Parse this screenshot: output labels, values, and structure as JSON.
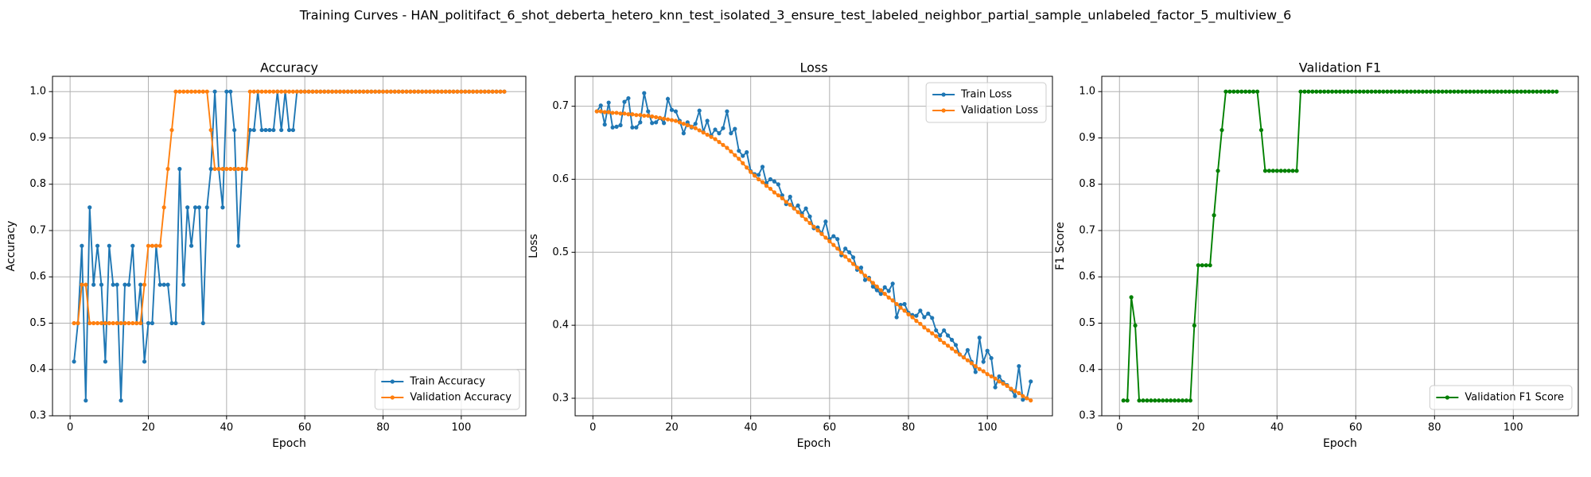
{
  "figure_title": "Training Curves - HAN_politifact_6_shot_deberta_hetero_knn_test_isolated_3_ensure_test_labeled_neighbor_partial_sample_unlabeled_factor_5_multiview_6",
  "chart_data": [
    {
      "type": "line",
      "title": "Accuracy",
      "xlabel": "Epoch",
      "ylabel": "Accuracy",
      "x": [
        1,
        2,
        3,
        4,
        5,
        6,
        7,
        8,
        9,
        10,
        11,
        12,
        13,
        14,
        15,
        16,
        17,
        18,
        19,
        20,
        21,
        22,
        23,
        24,
        25,
        26,
        27,
        28,
        29,
        30,
        31,
        32,
        33,
        34,
        35,
        36,
        37,
        38,
        39,
        40,
        41,
        42,
        43,
        44,
        45,
        46,
        47,
        48,
        49,
        50,
        51,
        52,
        53,
        54,
        55,
        56,
        57,
        58,
        59,
        60,
        61,
        62,
        63,
        64,
        65,
        66,
        67,
        68,
        69,
        70,
        71,
        72,
        73,
        74,
        75,
        76,
        77,
        78,
        79,
        80,
        81,
        82,
        83,
        84,
        85,
        86,
        87,
        88,
        89,
        90,
        91,
        92,
        93,
        94,
        95,
        96,
        97,
        98,
        99,
        100,
        101,
        102,
        103,
        104,
        105,
        106,
        107,
        108,
        109,
        110,
        111
      ],
      "xlim": [
        -4.5,
        116.5
      ],
      "xticks": [
        0,
        20,
        40,
        60,
        80,
        100
      ],
      "ylim": [
        0.3,
        1.033
      ],
      "yticks": [
        0.3,
        0.4,
        0.5,
        0.6,
        0.7,
        0.8,
        0.9,
        {
          "value": 1,
          "label": "1.0"
        }
      ],
      "grid": true,
      "legend": "lower right",
      "series": [
        {
          "name": "Train Accuracy",
          "color": "#1f77b4",
          "values": [
            0.417,
            0.5,
            0.667,
            0.333,
            0.75,
            0.583,
            0.667,
            0.583,
            0.417,
            0.667,
            0.583,
            0.583,
            0.333,
            0.583,
            0.583,
            0.667,
            0.5,
            0.583,
            0.417,
            0.5,
            0.5,
            0.667,
            0.583,
            0.583,
            0.583,
            0.5,
            0.5,
            0.833,
            0.583,
            0.75,
            0.667,
            0.75,
            0.75,
            0.5,
            0.75,
            0.833,
            1,
            0.833,
            0.75,
            1,
            1,
            0.917,
            0.667,
            0.833,
            0.833,
            0.917,
            0.917,
            1,
            0.917,
            0.917,
            0.917,
            0.917,
            1,
            0.917,
            1,
            0.917,
            0.917,
            1,
            1,
            1,
            1,
            1,
            1,
            1,
            1,
            1,
            1,
            1,
            1,
            1,
            1,
            1,
            1,
            1,
            1,
            1,
            1,
            1,
            1,
            1,
            1,
            1,
            1,
            1,
            1,
            1,
            1,
            1,
            1,
            1,
            1,
            1,
            1,
            1,
            1,
            1,
            1,
            1,
            1,
            1,
            1,
            1,
            1,
            1,
            1,
            1,
            1,
            1,
            1,
            1,
            1
          ]
        },
        {
          "name": "Validation Accuracy",
          "color": "#ff7f0e",
          "values": [
            0.5,
            0.5,
            0.583,
            0.583,
            0.5,
            0.5,
            0.5,
            0.5,
            0.5,
            0.5,
            0.5,
            0.5,
            0.5,
            0.5,
            0.5,
            0.5,
            0.5,
            0.5,
            0.583,
            0.667,
            0.667,
            0.667,
            0.667,
            0.75,
            0.833,
            0.917,
            1,
            1,
            1,
            1,
            1,
            1,
            1,
            1,
            1,
            0.917,
            0.833,
            0.833,
            0.833,
            0.833,
            0.833,
            0.833,
            0.833,
            0.833,
            0.833,
            1,
            1,
            1,
            1,
            1,
            1,
            1,
            1,
            1,
            1,
            1,
            1,
            1,
            1,
            1,
            1,
            1,
            1,
            1,
            1,
            1,
            1,
            1,
            1,
            1,
            1,
            1,
            1,
            1,
            1,
            1,
            1,
            1,
            1,
            1,
            1,
            1,
            1,
            1,
            1,
            1,
            1,
            1,
            1,
            1,
            1,
            1,
            1,
            1,
            1,
            1,
            1,
            1,
            1,
            1,
            1,
            1,
            1,
            1,
            1,
            1,
            1,
            1,
            1,
            1,
            1
          ]
        }
      ]
    },
    {
      "type": "line",
      "title": "Loss",
      "xlabel": "Epoch",
      "ylabel": "Loss",
      "x": [
        1,
        2,
        3,
        4,
        5,
        6,
        7,
        8,
        9,
        10,
        11,
        12,
        13,
        14,
        15,
        16,
        17,
        18,
        19,
        20,
        21,
        22,
        23,
        24,
        25,
        26,
        27,
        28,
        29,
        30,
        31,
        32,
        33,
        34,
        35,
        36,
        37,
        38,
        39,
        40,
        41,
        42,
        43,
        44,
        45,
        46,
        47,
        48,
        49,
        50,
        51,
        52,
        53,
        54,
        55,
        56,
        57,
        58,
        59,
        60,
        61,
        62,
        63,
        64,
        65,
        66,
        67,
        68,
        69,
        70,
        71,
        72,
        73,
        74,
        75,
        76,
        77,
        78,
        79,
        80,
        81,
        82,
        83,
        84,
        85,
        86,
        87,
        88,
        89,
        90,
        91,
        92,
        93,
        94,
        95,
        96,
        97,
        98,
        99,
        100,
        101,
        102,
        103,
        104,
        105,
        106,
        107,
        108,
        109,
        110,
        111
      ],
      "xlim": [
        -4.5,
        116.5
      ],
      "xticks": [
        0,
        20,
        40,
        60,
        80,
        100
      ],
      "ylim": [
        0.276,
        0.741
      ],
      "yticks": [
        0.3,
        0.4,
        0.5,
        0.6,
        0.7
      ],
      "grid": true,
      "legend": "upper right",
      "series": [
        {
          "name": "Train Loss",
          "color": "#1f77b4",
          "values": [
            0.693,
            0.701,
            0.675,
            0.705,
            0.671,
            0.672,
            0.674,
            0.706,
            0.711,
            0.671,
            0.671,
            0.678,
            0.718,
            0.693,
            0.677,
            0.678,
            0.684,
            0.677,
            0.71,
            0.695,
            0.693,
            0.68,
            0.663,
            0.678,
            0.671,
            0.676,
            0.694,
            0.665,
            0.68,
            0.66,
            0.668,
            0.663,
            0.67,
            0.693,
            0.663,
            0.669,
            0.639,
            0.632,
            0.637,
            0.611,
            0.607,
            0.606,
            0.617,
            0.595,
            0.6,
            0.597,
            0.593,
            0.578,
            0.566,
            0.576,
            0.56,
            0.564,
            0.553,
            0.56,
            0.549,
            0.533,
            0.534,
            0.526,
            0.542,
            0.518,
            0.522,
            0.518,
            0.496,
            0.505,
            0.5,
            0.493,
            0.476,
            0.479,
            0.462,
            0.465,
            0.453,
            0.448,
            0.443,
            0.452,
            0.447,
            0.457,
            0.411,
            0.428,
            0.429,
            0.417,
            0.414,
            0.413,
            0.42,
            0.411,
            0.416,
            0.41,
            0.393,
            0.386,
            0.393,
            0.386,
            0.38,
            0.373,
            0.36,
            0.356,
            0.366,
            0.35,
            0.336,
            0.383,
            0.35,
            0.365,
            0.355,
            0.315,
            0.33,
            0.322,
            0.318,
            0.312,
            0.303,
            0.344,
            0.298,
            0.3,
            0.323
          ]
        },
        {
          "name": "Validation Loss",
          "color": "#ff7f0e",
          "values": [
            0.693,
            0.693,
            0.692,
            0.692,
            0.691,
            0.691,
            0.69,
            0.69,
            0.689,
            0.689,
            0.688,
            0.688,
            0.687,
            0.687,
            0.686,
            0.685,
            0.684,
            0.683,
            0.682,
            0.681,
            0.68,
            0.678,
            0.676,
            0.674,
            0.672,
            0.67,
            0.667,
            0.664,
            0.661,
            0.658,
            0.655,
            0.651,
            0.647,
            0.643,
            0.638,
            0.633,
            0.628,
            0.622,
            0.616,
            0.61,
            0.605,
            0.6,
            0.596,
            0.591,
            0.587,
            0.582,
            0.578,
            0.574,
            0.569,
            0.565,
            0.56,
            0.555,
            0.55,
            0.545,
            0.54,
            0.535,
            0.53,
            0.525,
            0.52,
            0.515,
            0.51,
            0.505,
            0.499,
            0.494,
            0.489,
            0.484,
            0.479,
            0.473,
            0.468,
            0.463,
            0.458,
            0.453,
            0.448,
            0.443,
            0.438,
            0.434,
            0.429,
            0.424,
            0.42,
            0.415,
            0.411,
            0.406,
            0.402,
            0.397,
            0.393,
            0.389,
            0.385,
            0.38,
            0.376,
            0.372,
            0.368,
            0.364,
            0.36,
            0.356,
            0.352,
            0.348,
            0.344,
            0.34,
            0.337,
            0.333,
            0.33,
            0.327,
            0.323,
            0.32,
            0.317,
            0.313,
            0.31,
            0.307,
            0.303,
            0.3,
            0.297
          ]
        }
      ]
    },
    {
      "type": "line",
      "title": "Validation F1",
      "xlabel": "Epoch",
      "ylabel": "F1 Score",
      "x": [
        1,
        2,
        3,
        4,
        5,
        6,
        7,
        8,
        9,
        10,
        11,
        12,
        13,
        14,
        15,
        16,
        17,
        18,
        19,
        20,
        21,
        22,
        23,
        24,
        25,
        26,
        27,
        28,
        29,
        30,
        31,
        32,
        33,
        34,
        35,
        36,
        37,
        38,
        39,
        40,
        41,
        42,
        43,
        44,
        45,
        46,
        47,
        48,
        49,
        50,
        51,
        52,
        53,
        54,
        55,
        56,
        57,
        58,
        59,
        60,
        61,
        62,
        63,
        64,
        65,
        66,
        67,
        68,
        69,
        70,
        71,
        72,
        73,
        74,
        75,
        76,
        77,
        78,
        79,
        80,
        81,
        82,
        83,
        84,
        85,
        86,
        87,
        88,
        89,
        90,
        91,
        92,
        93,
        94,
        95,
        96,
        97,
        98,
        99,
        100,
        101,
        102,
        103,
        104,
        105,
        106,
        107,
        108,
        109,
        110,
        111
      ],
      "xlim": [
        -4.5,
        116.5
      ],
      "xticks": [
        0,
        20,
        40,
        60,
        80,
        100
      ],
      "ylim": [
        0.3,
        1.033
      ],
      "yticks": [
        0.3,
        0.4,
        0.5,
        0.6,
        0.7,
        0.8,
        0.9,
        {
          "value": 1,
          "label": "1.0"
        }
      ],
      "grid": true,
      "legend": "lower right",
      "series": [
        {
          "name": "Validation F1 Score",
          "color": "#008000",
          "values": [
            0.333,
            0.333,
            0.556,
            0.495,
            0.333,
            0.333,
            0.333,
            0.333,
            0.333,
            0.333,
            0.333,
            0.333,
            0.333,
            0.333,
            0.333,
            0.333,
            0.333,
            0.333,
            0.495,
            0.625,
            0.625,
            0.625,
            0.625,
            0.733,
            0.829,
            0.917,
            1,
            1,
            1,
            1,
            1,
            1,
            1,
            1,
            1,
            0.917,
            0.829,
            0.829,
            0.829,
            0.829,
            0.829,
            0.829,
            0.829,
            0.829,
            0.829,
            1,
            1,
            1,
            1,
            1,
            1,
            1,
            1,
            1,
            1,
            1,
            1,
            1,
            1,
            1,
            1,
            1,
            1,
            1,
            1,
            1,
            1,
            1,
            1,
            1,
            1,
            1,
            1,
            1,
            1,
            1,
            1,
            1,
            1,
            1,
            1,
            1,
            1,
            1,
            1,
            1,
            1,
            1,
            1,
            1,
            1,
            1,
            1,
            1,
            1,
            1,
            1,
            1,
            1,
            1,
            1,
            1,
            1,
            1,
            1,
            1,
            1,
            1,
            1,
            1,
            1
          ]
        }
      ]
    }
  ]
}
